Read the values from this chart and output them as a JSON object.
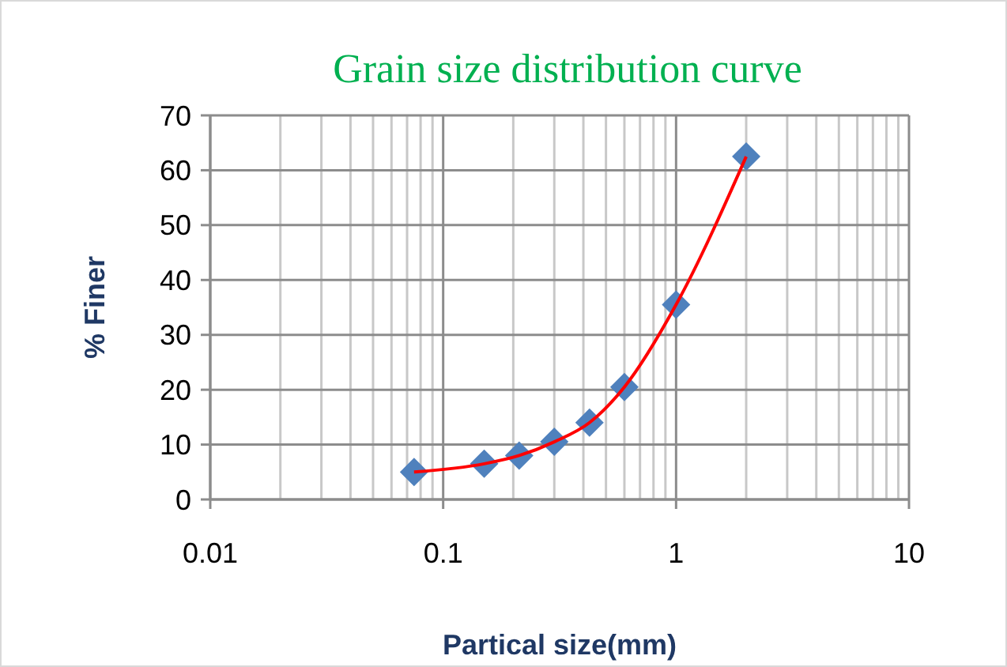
{
  "chart_data": {
    "type": "scatter",
    "title": "Grain size distribution  curve",
    "xlabel": "Partical size(mm)",
    "ylabel": "% Finer",
    "log": "x",
    "x": [
      0.075,
      0.15,
      0.212,
      0.3,
      0.425,
      0.6,
      1.0,
      2.0
    ],
    "series": [
      {
        "color": "#4f81bd",
        "marker": "diamond",
        "values": [
          5,
          6.5,
          8,
          10.5,
          14,
          20.5,
          35.5,
          62.5
        ]
      },
      {
        "type": "line",
        "color": "#ff0000",
        "marker": "none",
        "values": [
          5,
          6.5,
          8,
          10.5,
          14,
          20.5,
          35.5,
          62.5
        ]
      }
    ],
    "xlim": [
      0.01,
      10
    ],
    "ylim": [
      0,
      70
    ],
    "xticks": [
      0.01,
      {
        "value": 0.02,
        "label": null
      },
      {
        "value": 0.03,
        "label": null
      },
      {
        "value": 0.04,
        "label": null
      },
      {
        "value": 0.05,
        "label": null
      },
      {
        "value": 0.06,
        "label": null
      },
      {
        "value": 0.07,
        "label": null
      },
      {
        "value": 0.08,
        "label": null
      },
      {
        "value": 0.09,
        "label": null
      },
      0.1,
      {
        "value": 0.2,
        "label": null
      },
      {
        "value": 0.3,
        "label": null
      },
      {
        "value": 0.4,
        "label": null
      },
      {
        "value": 0.5,
        "label": null
      },
      {
        "value": 0.6,
        "label": null
      },
      {
        "value": 0.7,
        "label": null
      },
      {
        "value": 0.8,
        "label": null
      },
      {
        "value": 0.9,
        "label": null
      },
      1,
      {
        "value": 2,
        "label": null
      },
      {
        "value": 3,
        "label": null
      },
      {
        "value": 4,
        "label": null
      },
      {
        "value": 5,
        "label": null
      },
      {
        "value": 6,
        "label": null
      },
      {
        "value": 7,
        "label": null
      },
      {
        "value": 8,
        "label": null
      },
      {
        "value": 9,
        "label": null
      },
      10
    ],
    "yticks": [
      0,
      10,
      20,
      30,
      40,
      50,
      60,
      70
    ],
    "grid": true
  }
}
